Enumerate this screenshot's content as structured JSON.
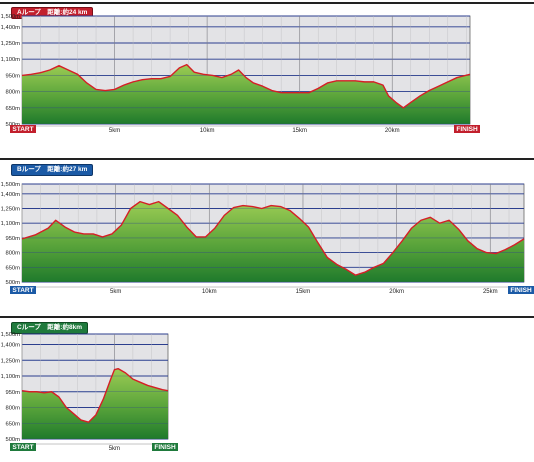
{
  "charts": [
    {
      "badge": "Aループ　距離:約24 km",
      "badge_color": "#c21f2c",
      "start_label": "START",
      "finish_label": "FINISH",
      "start_color": "#c21f2c",
      "finish_color": "#c21f2c"
    },
    {
      "badge": "Bループ　距離:約27 km",
      "badge_color": "#1b5aa6",
      "start_label": "START",
      "finish_label": "FINISH",
      "start_color": "#1b5aa6",
      "finish_color": "#1b5aa6"
    },
    {
      "badge": "Cループ　距離:約8km",
      "badge_color": "#1f7a3c",
      "start_label": "START",
      "finish_label": "FINISH",
      "start_color": "#1f7a3c",
      "finish_color": "#1f7a3c"
    }
  ],
  "chart_data": [
    {
      "type": "area",
      "title": "Aループ　距離:約24 km",
      "xlabel": "",
      "ylabel": "",
      "xlim": [
        0,
        24.2
      ],
      "ylim": [
        500,
        1500
      ],
      "y_ticks": [
        500,
        650,
        800,
        950,
        1100,
        1250,
        1400
      ],
      "y_tick_labels": [
        "500m",
        "650m",
        "800m",
        "950m",
        "1,100m",
        "1,250m",
        "1,400m",
        "1,500m"
      ],
      "y_tick_values": [
        500,
        650,
        800,
        950,
        1100,
        1250,
        1400,
        1500
      ],
      "x_ticks": [
        5,
        10,
        15,
        20
      ],
      "x_tick_labels": [
        "5km",
        "10km",
        "15km",
        "20km"
      ],
      "grid": true,
      "series": [
        {
          "values_x": [
            0,
            0.5,
            1.0,
            1.5,
            2.0,
            2.5,
            3.0,
            3.5,
            4.0,
            4.5,
            5.0,
            5.5,
            6.0,
            6.5,
            7.0,
            7.5,
            8.0,
            8.5,
            8.9,
            9.3,
            9.8,
            10.3,
            10.8,
            11.3,
            11.7,
            12.1,
            12.5,
            13.0,
            13.5,
            14.0,
            14.5,
            15.0,
            15.5,
            16.0,
            16.5,
            17.0,
            17.5,
            18.0,
            18.5,
            19.0,
            19.5,
            19.8,
            20.2,
            20.6,
            21.0,
            21.5,
            22.0,
            22.5,
            23.0,
            23.5,
            24.2
          ],
          "values_y": [
            950,
            960,
            975,
            1000,
            1040,
            1000,
            960,
            880,
            820,
            810,
            820,
            860,
            890,
            910,
            920,
            920,
            940,
            1020,
            1050,
            980,
            960,
            950,
            930,
            960,
            1000,
            930,
            880,
            850,
            810,
            790,
            790,
            790,
            790,
            830,
            880,
            900,
            900,
            900,
            890,
            890,
            860,
            760,
            700,
            650,
            700,
            760,
            810,
            850,
            890,
            930,
            960
          ],
          "color": "#d51f26"
        }
      ]
    },
    {
      "type": "area",
      "title": "Bループ　距離:約27 km",
      "xlabel": "",
      "ylabel": "",
      "xlim": [
        0,
        26.8
      ],
      "ylim": [
        500,
        1500
      ],
      "y_tick_labels": [
        "500m",
        "650m",
        "800m",
        "950m",
        "1,100m",
        "1,250m",
        "1,400m",
        "1,500m"
      ],
      "y_tick_values": [
        500,
        650,
        800,
        950,
        1100,
        1250,
        1400,
        1500
      ],
      "x_ticks": [
        5,
        10,
        15,
        20,
        25
      ],
      "x_tick_labels": [
        "5km",
        "10km",
        "15km",
        "20km",
        "25km"
      ],
      "grid": true,
      "series": [
        {
          "values_x": [
            0,
            0.7,
            1.4,
            1.8,
            2.3,
            2.8,
            3.3,
            3.8,
            4.3,
            4.8,
            5.3,
            5.8,
            6.3,
            6.8,
            7.3,
            7.8,
            8.3,
            8.8,
            9.3,
            9.8,
            10.3,
            10.8,
            11.3,
            11.8,
            12.3,
            12.8,
            13.3,
            13.8,
            14.3,
            14.8,
            15.3,
            15.8,
            16.3,
            16.8,
            17.3,
            17.8,
            18.3,
            18.8,
            19.3,
            19.8,
            20.3,
            20.8,
            21.3,
            21.8,
            22.3,
            22.8,
            23.3,
            23.8,
            24.3,
            24.8,
            25.3,
            25.8,
            26.3,
            26.8
          ],
          "values_y": [
            940,
            980,
            1050,
            1130,
            1060,
            1010,
            990,
            990,
            960,
            990,
            1080,
            1250,
            1320,
            1290,
            1320,
            1250,
            1180,
            1060,
            960,
            960,
            1050,
            1180,
            1260,
            1280,
            1270,
            1250,
            1280,
            1270,
            1230,
            1150,
            1060,
            900,
            750,
            680,
            630,
            570,
            600,
            650,
            690,
            800,
            920,
            1050,
            1130,
            1160,
            1100,
            1130,
            1040,
            920,
            840,
            800,
            790,
            830,
            880,
            940
          ],
          "color": "#d51f26"
        }
      ]
    },
    {
      "type": "area",
      "title": "Cループ　距離:約8km",
      "xlabel": "",
      "ylabel": "",
      "xlim": [
        0,
        7.9
      ],
      "ylim": [
        500,
        1500
      ],
      "y_tick_labels": [
        "500m",
        "650m",
        "800m",
        "950m",
        "1,100m",
        "1,250m",
        "1,400m",
        "1,500m"
      ],
      "y_tick_values": [
        500,
        650,
        800,
        950,
        1100,
        1250,
        1400,
        1500
      ],
      "x_ticks": [
        5
      ],
      "x_tick_labels": [
        "5km"
      ],
      "grid": true,
      "series": [
        {
          "values_x": [
            0,
            0.4,
            0.8,
            1.2,
            1.6,
            2.0,
            2.4,
            2.8,
            3.2,
            3.6,
            4.0,
            4.4,
            4.8,
            5.0,
            5.2,
            5.6,
            6.0,
            6.4,
            6.8,
            7.2,
            7.6,
            7.9
          ],
          "values_y": [
            960,
            950,
            950,
            940,
            950,
            900,
            800,
            740,
            680,
            660,
            730,
            880,
            1070,
            1160,
            1170,
            1130,
            1070,
            1040,
            1010,
            990,
            970,
            960
          ],
          "color": "#d51f26"
        }
      ]
    }
  ]
}
